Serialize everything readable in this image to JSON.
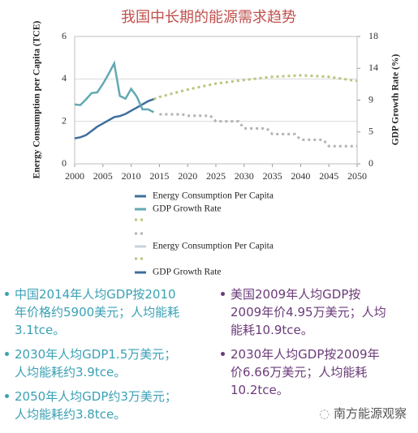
{
  "chart_data": {
    "type": "line",
    "title": "我国中长期的能源需求趋势",
    "y_label": "Energy Consumption per Capita (TCE)",
    "y2_label": "GDP Growth Rate (%)",
    "xlim": [
      2000,
      2050
    ],
    "xticks": [
      2000,
      2005,
      2010,
      2015,
      2020,
      2025,
      2030,
      2035,
      2040,
      2045,
      2050
    ],
    "ylim": [
      0,
      6
    ],
    "yticks": [
      0,
      2,
      4,
      6
    ],
    "y2lim": [
      0,
      18
    ],
    "y2ticks": [
      0,
      {
        "value": 4.5,
        "label": "5"
      },
      9,
      {
        "value": 13.5,
        "label": "14"
      },
      18
    ],
    "grid": true,
    "series": [
      {
        "color": "#3d6f9e",
        "dash": "solid",
        "x": [
          2000,
          2001,
          2002,
          2003,
          2004,
          2005,
          2006,
          2007,
          2008,
          2009,
          2010,
          2011,
          2012,
          2013,
          2014
        ],
        "values": [
          1.2,
          1.25,
          1.35,
          1.55,
          1.75,
          1.9,
          2.05,
          2.2,
          2.25,
          2.35,
          2.5,
          2.65,
          2.8,
          2.95,
          3.05
        ]
      },
      {
        "color": "#62a9b3",
        "dash": "solid",
        "axis": "y2",
        "x": [
          2000,
          2001,
          2002,
          2003,
          2004,
          2005,
          2006,
          2007,
          2008,
          2009,
          2010,
          2011,
          2012,
          2013,
          2014
        ],
        "values": [
          8.4,
          8.3,
          9.1,
          10.0,
          10.1,
          11.3,
          12.7,
          14.2,
          9.6,
          9.2,
          10.6,
          9.5,
          7.7,
          7.7,
          7.3
        ]
      },
      {
        "color": "#b9c47e",
        "dash": "dot",
        "x": [
          2014,
          2015,
          2020,
          2025,
          2030,
          2035,
          2040,
          2045,
          2050
        ],
        "values": [
          3.05,
          3.15,
          3.5,
          3.78,
          3.95,
          4.1,
          4.17,
          4.1,
          3.9
        ]
      },
      {
        "color": "#b3b3b3",
        "dash": "dot",
        "axis": "y2",
        "x": [
          2015,
          2019,
          2020,
          2024,
          2025,
          2029,
          2030,
          2034,
          2035,
          2039,
          2040,
          2044,
          2045,
          2050
        ],
        "values": [
          7.0,
          7.0,
          6.8,
          6.8,
          6.0,
          6.0,
          5.0,
          5.0,
          4.2,
          4.2,
          3.4,
          3.4,
          2.5,
          2.5
        ]
      }
    ],
    "legend": [
      {
        "name": "Energy Consumption Per Capita",
        "color": "#3d6f9e",
        "dash": "solid"
      },
      {
        "name": "GDP Growth Rate",
        "color": "#62a9b3",
        "dash": "solid"
      },
      {
        "color": "#b9c47e",
        "dash": "dot"
      },
      {
        "color": "#b3b3b3",
        "dash": "dot"
      },
      {
        "name": "Energy Consumption Per Capita",
        "color": "#c9d3e0",
        "dash": "solid"
      },
      {
        "color": "#b9c47e",
        "dash": "dot"
      },
      {
        "name": "GDP Growth Rate",
        "color": "#3d6f9e",
        "dash": "solid"
      }
    ]
  },
  "bullets": {
    "left": [
      [
        "中国2014年人均GDP按2010",
        "年价格约5900美元；人均能耗",
        "3.1tce。"
      ],
      [
        "2030年人均GDP1.5万美元；",
        "人均能耗约3.9tce。"
      ],
      [
        "2050年人均GDP约3万美元；",
        "人均能耗约3.8tce。"
      ]
    ],
    "right": [
      [
        "美国2009年人均GDP按",
        "2009年价4.95万美元；人均",
        "能耗10.9tce。"
      ],
      [
        "2030年人均GDP按2009年",
        "价6.66万美元；人均能耗",
        "10.2tce。"
      ]
    ]
  },
  "watermark": "南方能源观察"
}
